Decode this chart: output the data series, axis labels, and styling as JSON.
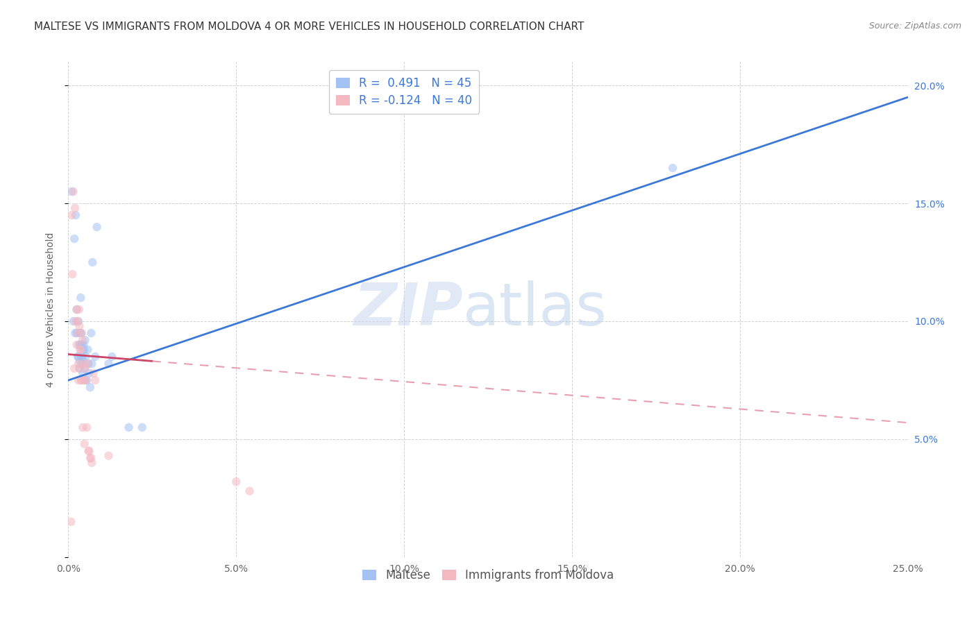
{
  "title": "MALTESE VS IMMIGRANTS FROM MOLDOVA 4 OR MORE VEHICLES IN HOUSEHOLD CORRELATION CHART",
  "source": "Source: ZipAtlas.com",
  "ylabel": "4 or more Vehicles in Household",
  "watermark_zip": "ZIP",
  "watermark_atlas": "atlas",
  "xlim": [
    0.0,
    0.25
  ],
  "ylim": [
    0.0,
    0.21
  ],
  "xticks": [
    0.0,
    0.05,
    0.1,
    0.15,
    0.2,
    0.25
  ],
  "xticklabels": [
    "0.0%",
    "5.0%",
    "10.0%",
    "15.0%",
    "20.0%",
    "25.0%"
  ],
  "yticks_right": [
    0.05,
    0.1,
    0.15,
    0.2
  ],
  "yticklabels_right": [
    "5.0%",
    "10.0%",
    "15.0%",
    "20.0%"
  ],
  "blue_color": "#a4c2f4",
  "pink_color": "#f4b8c1",
  "blue_line_color": "#3c78d8",
  "pink_line_color": "#cc4466",
  "pink_dashed_color": "#e8a0b0",
  "legend_blue_label": "R =  0.491   N = 45",
  "legend_pink_label": "R = -0.124   N = 40",
  "legend_label_blue": "Maltese",
  "legend_label_pink": "Immigrants from Moldova",
  "blue_line_x0": 0.0,
  "blue_line_y0": 0.075,
  "blue_line_x1": 0.25,
  "blue_line_y1": 0.195,
  "pink_line_x0": 0.0,
  "pink_line_y0": 0.086,
  "pink_line_x1": 0.25,
  "pink_line_y1": 0.057,
  "pink_solid_xend": 0.025,
  "maltese_x": [
    0.001,
    0.0015,
    0.0018,
    0.002,
    0.0022,
    0.0025,
    0.0025,
    0.0028,
    0.003,
    0.003,
    0.0032,
    0.0033,
    0.0035,
    0.0035,
    0.0035,
    0.0037,
    0.0038,
    0.0038,
    0.004,
    0.004,
    0.0042,
    0.0043,
    0.0043,
    0.0045,
    0.0045,
    0.0047,
    0.0048,
    0.005,
    0.005,
    0.0052,
    0.0055,
    0.0058,
    0.006,
    0.0062,
    0.0065,
    0.0068,
    0.007,
    0.0072,
    0.008,
    0.0085,
    0.012,
    0.013,
    0.018,
    0.022,
    0.18
  ],
  "maltese_y": [
    0.155,
    0.1,
    0.135,
    0.095,
    0.145,
    0.105,
    0.095,
    0.085,
    0.1,
    0.085,
    0.09,
    0.08,
    0.095,
    0.09,
    0.083,
    0.11,
    0.095,
    0.085,
    0.09,
    0.082,
    0.088,
    0.085,
    0.078,
    0.09,
    0.083,
    0.088,
    0.08,
    0.092,
    0.075,
    0.085,
    0.075,
    0.088,
    0.082,
    0.078,
    0.072,
    0.095,
    0.082,
    0.125,
    0.085,
    0.14,
    0.082,
    0.085,
    0.055,
    0.055,
    0.165
  ],
  "moldova_x": [
    0.0008,
    0.001,
    0.0012,
    0.0015,
    0.0018,
    0.002,
    0.0022,
    0.0025,
    0.0025,
    0.0028,
    0.0028,
    0.003,
    0.003,
    0.0032,
    0.0033,
    0.0035,
    0.0035,
    0.0037,
    0.0038,
    0.004,
    0.004,
    0.0042,
    0.0043,
    0.0045,
    0.0047,
    0.0048,
    0.005,
    0.0052,
    0.0055,
    0.0058,
    0.006,
    0.0062,
    0.0065,
    0.0068,
    0.007,
    0.0075,
    0.008,
    0.012,
    0.05,
    0.054
  ],
  "moldova_y": [
    0.015,
    0.145,
    0.12,
    0.155,
    0.08,
    0.148,
    0.1,
    0.105,
    0.09,
    0.1,
    0.095,
    0.082,
    0.075,
    0.105,
    0.098,
    0.088,
    0.08,
    0.088,
    0.075,
    0.095,
    0.075,
    0.092,
    0.055,
    0.082,
    0.075,
    0.048,
    0.08,
    0.075,
    0.055,
    0.082,
    0.045,
    0.045,
    0.042,
    0.042,
    0.04,
    0.078,
    0.075,
    0.043,
    0.032,
    0.028
  ],
  "title_fontsize": 11,
  "axis_label_fontsize": 10,
  "tick_fontsize": 10,
  "legend_fontsize": 12,
  "source_fontsize": 9,
  "marker_size": 80,
  "marker_alpha": 0.55,
  "background_color": "#ffffff",
  "grid_color": "#cccccc"
}
